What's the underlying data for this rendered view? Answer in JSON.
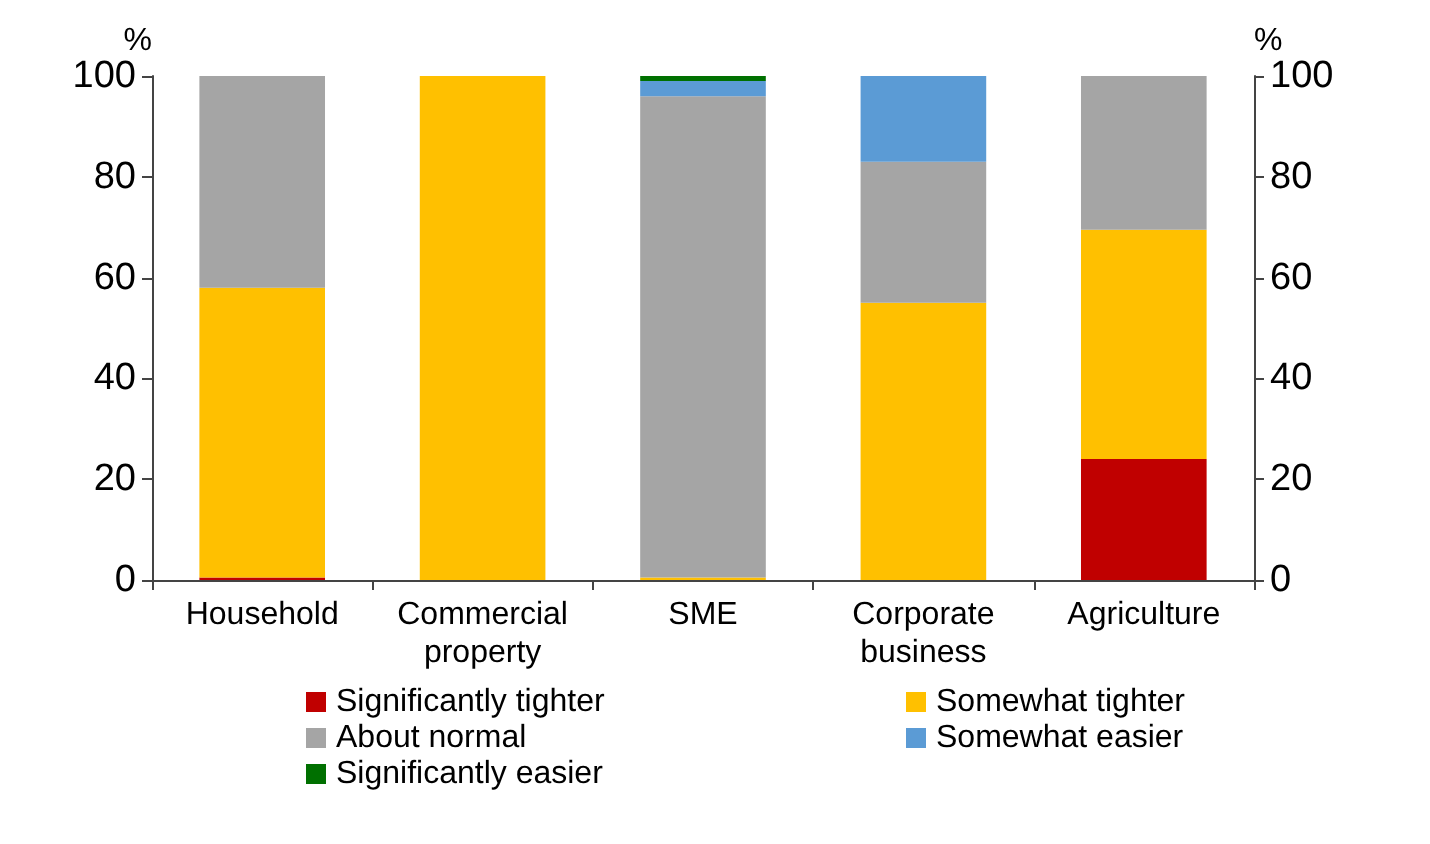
{
  "chart_data": {
    "type": "bar",
    "stacked": true,
    "categories": [
      "Household",
      "Commercial\nproperty",
      "SME",
      "Corporate\nbusiness",
      "Agriculture"
    ],
    "series": [
      {
        "name": "Significantly tighter",
        "color": "#c00000",
        "values": [
          0.5,
          0,
          0,
          0,
          24
        ]
      },
      {
        "name": "Somewhat tighter",
        "color": "#ffc000",
        "values": [
          57.5,
          100,
          0.5,
          55,
          45.5
        ]
      },
      {
        "name": "About normal",
        "color": "#a5a5a5",
        "values": [
          42,
          0,
          95.5,
          28,
          30.5
        ]
      },
      {
        "name": "Somewhat easier",
        "color": "#5b9bd5",
        "values": [
          0,
          0,
          3,
          17,
          0
        ]
      },
      {
        "name": "Significantly easier",
        "color": "#007000",
        "values": [
          0,
          0,
          1,
          0,
          0
        ]
      }
    ],
    "ylabel": "%",
    "y2label": "%",
    "ylim": [
      0,
      100
    ],
    "yticks": [
      0,
      20,
      40,
      60,
      80,
      100
    ],
    "y2lim": [
      0,
      100
    ],
    "y2ticks": [
      0,
      20,
      40,
      60,
      80,
      100
    ],
    "grid": false,
    "legend": "bottom"
  }
}
